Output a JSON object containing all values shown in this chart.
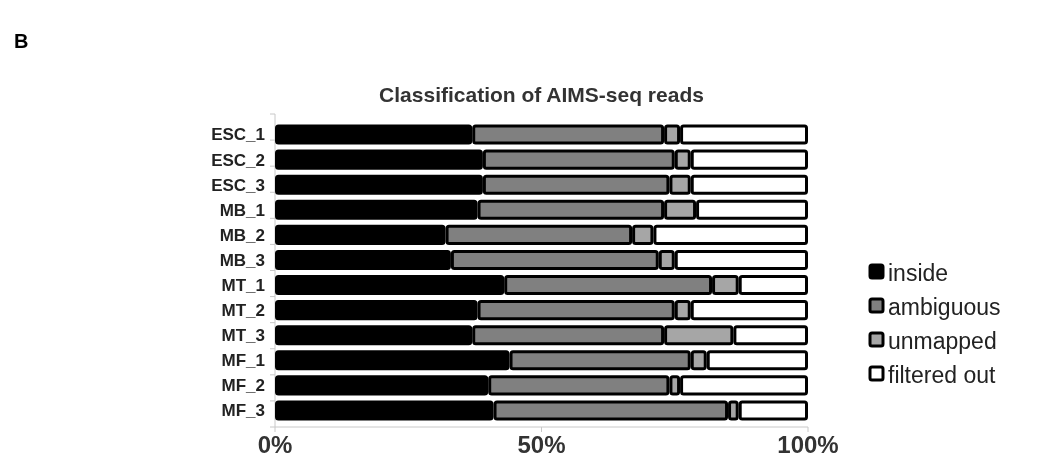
{
  "chart_data": {
    "type": "bar",
    "orientation": "horizontal",
    "stacked": true,
    "title": "Classification of AIMS-seq reads",
    "annotations": [
      "B"
    ],
    "categories": [
      "ESC_1",
      "ESC_2",
      "ESC_3",
      "MB_1",
      "MB_2",
      "MB_3",
      "MT_1",
      "MT_2",
      "MT_3",
      "MF_1",
      "MF_2",
      "MF_3"
    ],
    "series": [
      {
        "name": "inside",
        "color": "#000000",
        "values": [
          37,
          39,
          39,
          38,
          32,
          33,
          43,
          38,
          37,
          44,
          40,
          41
        ]
      },
      {
        "name": "ambiguous",
        "color": "#808080",
        "values": [
          36,
          36,
          35,
          35,
          35,
          39,
          39,
          37,
          36,
          34,
          34,
          44
        ]
      },
      {
        "name": "unmapped",
        "color": "#a6a6a6",
        "values": [
          3,
          3,
          4,
          6,
          4,
          3,
          5,
          3,
          13,
          3,
          2,
          2
        ]
      },
      {
        "name": "filtered out",
        "color": "#ffffff",
        "values": [
          24,
          22,
          22,
          21,
          29,
          25,
          13,
          22,
          14,
          19,
          24,
          13
        ]
      }
    ],
    "xlim": [
      0,
      100
    ],
    "xticks": [
      {
        "value": 0,
        "label": "0%"
      },
      {
        "value": 50,
        "label": "50%"
      },
      {
        "value": 100,
        "label": "100%"
      }
    ],
    "legend": "right",
    "grid": false
  }
}
